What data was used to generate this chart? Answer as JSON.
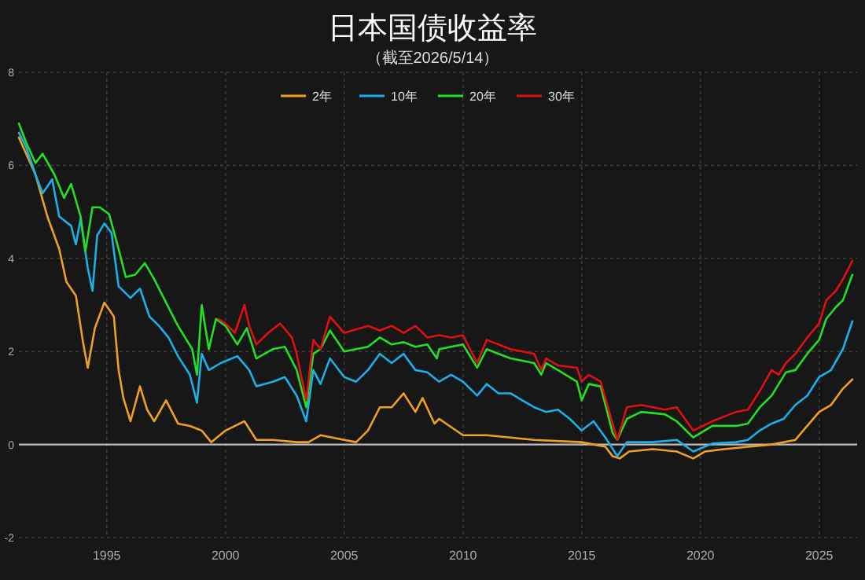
{
  "chart_data": {
    "type": "line",
    "title": "日本国债收益率",
    "subtitle": "（截至2026/5/14）",
    "xlim": [
      1991.3,
      2026.6
    ],
    "ylim": [
      -2,
      8
    ],
    "xticks": [
      1995,
      2000,
      2005,
      2010,
      2015,
      2020,
      2025
    ],
    "yticks": [
      -2,
      0,
      2,
      4,
      6,
      8
    ],
    "grid": true,
    "legend": "top",
    "marker": "none",
    "line_style": "solid",
    "ref_lines": [
      {
        "axis": "y",
        "value": 0,
        "color": "#bbbbbb"
      }
    ],
    "series": [
      {
        "name": "2年",
        "color": "#f0a020",
        "x": [
          1991.3,
          1992.0,
          1992.5,
          1993.0,
          1993.3,
          1993.7,
          1994.0,
          1994.2,
          1994.5,
          1994.9,
          1995.3,
          1995.5,
          1995.7,
          1996.0,
          1996.4,
          1996.7,
          1997.0,
          1997.5,
          1998.0,
          1998.5,
          1999.0,
          1999.4,
          2000.0,
          2000.8,
          2001.3,
          2002.0,
          2003.0,
          2003.5,
          2004.0,
          2005.0,
          2005.5,
          2006.0,
          2006.5,
          2007.0,
          2007.5,
          2008.0,
          2008.3,
          2008.8,
          2009.0,
          2010.0,
          2011.0,
          2013.0,
          2015.0,
          2016.0,
          2016.3,
          2016.6,
          2017.0,
          2018.0,
          2019.0,
          2019.7,
          2020.2,
          2021.0,
          2022.0,
          2023.0,
          2024.0,
          2024.5,
          2025.0,
          2025.5,
          2026.0,
          2026.4
        ],
        "values": [
          6.6,
          5.8,
          4.9,
          4.2,
          3.5,
          3.2,
          2.2,
          1.65,
          2.5,
          3.05,
          2.75,
          1.6,
          1.0,
          0.5,
          1.25,
          0.75,
          0.5,
          0.95,
          0.45,
          0.4,
          0.3,
          0.05,
          0.3,
          0.5,
          0.1,
          0.1,
          0.05,
          0.05,
          0.2,
          0.1,
          0.05,
          0.3,
          0.8,
          0.8,
          1.1,
          0.7,
          1.0,
          0.45,
          0.55,
          0.2,
          0.2,
          0.1,
          0.05,
          -0.05,
          -0.25,
          -0.3,
          -0.15,
          -0.1,
          -0.15,
          -0.3,
          -0.15,
          -0.1,
          -0.05,
          0,
          0.1,
          0.4,
          0.7,
          0.85,
          1.2,
          1.4
        ]
      },
      {
        "name": "10年",
        "color": "#1ab0e8",
        "x": [
          1991.3,
          1991.6,
          1992.0,
          1992.3,
          1992.7,
          1993.0,
          1993.5,
          1993.7,
          1993.9,
          1994.2,
          1994.4,
          1994.6,
          1994.9,
          1995.2,
          1995.5,
          1996.0,
          1996.4,
          1996.8,
          1997.2,
          1997.6,
          1998.0,
          1998.5,
          1998.8,
          1999.0,
          1999.3,
          1999.8,
          2000.5,
          2001.0,
          2001.3,
          2002.0,
          2002.5,
          2003.0,
          2003.4,
          2003.7,
          2004.0,
          2004.4,
          2005.0,
          2005.5,
          2006.0,
          2006.5,
          2007.0,
          2007.5,
          2008.0,
          2008.5,
          2009.0,
          2009.5,
          2010.0,
          2010.6,
          2011.0,
          2011.5,
          2012.0,
          2013.0,
          2013.5,
          2014.0,
          2014.5,
          2015.0,
          2015.5,
          2016.0,
          2016.5,
          2016.9,
          2018.0,
          2019.0,
          2019.7,
          2020.5,
          2021.5,
          2022.0,
          2022.5,
          2023.0,
          2023.5,
          2024.0,
          2024.5,
          2025.0,
          2025.5,
          2026.0,
          2026.4
        ],
        "values": [
          6.7,
          6.4,
          5.8,
          5.4,
          5.7,
          4.9,
          4.7,
          4.3,
          4.85,
          3.8,
          3.3,
          4.5,
          4.75,
          4.55,
          3.4,
          3.15,
          3.35,
          2.75,
          2.55,
          2.3,
          1.9,
          1.5,
          0.9,
          1.95,
          1.6,
          1.75,
          1.9,
          1.6,
          1.25,
          1.35,
          1.45,
          1.05,
          0.5,
          1.6,
          1.3,
          1.85,
          1.45,
          1.35,
          1.6,
          1.95,
          1.75,
          1.95,
          1.6,
          1.55,
          1.35,
          1.5,
          1.35,
          1.05,
          1.3,
          1.1,
          1.1,
          0.8,
          0.7,
          0.75,
          0.55,
          0.3,
          0.5,
          0.15,
          -0.25,
          0.05,
          0.05,
          0.1,
          -0.15,
          0.02,
          0.05,
          0.1,
          0.3,
          0.45,
          0.55,
          0.85,
          1.05,
          1.45,
          1.6,
          2.05,
          2.65
        ]
      },
      {
        "name": "20年",
        "color": "#22e022",
        "x": [
          1991.3,
          1991.6,
          1992.0,
          1992.3,
          1992.8,
          1993.2,
          1993.5,
          1993.9,
          1994.1,
          1994.4,
          1994.7,
          1995.1,
          1995.5,
          1995.8,
          1996.2,
          1996.6,
          1997.0,
          1997.5,
          1998.0,
          1998.6,
          1998.8,
          1999.0,
          1999.3,
          1999.6,
          2000.0,
          2000.5,
          2000.9,
          2001.3,
          2002.0,
          2002.5,
          2003.0,
          2003.4,
          2003.7,
          2004.0,
          2004.4,
          2005.0,
          2006.0,
          2006.5,
          2007.0,
          2007.5,
          2008.0,
          2008.5,
          2008.9,
          2009.0,
          2009.5,
          2010.0,
          2010.6,
          2011.0,
          2012.0,
          2013.0,
          2013.3,
          2013.5,
          2014.0,
          2014.8,
          2015.0,
          2015.3,
          2015.8,
          2016.3,
          2016.5,
          2016.9,
          2017.5,
          2018.5,
          2019.0,
          2019.7,
          2020.5,
          2021.5,
          2022.0,
          2022.5,
          2023.0,
          2023.3,
          2023.6,
          2024.0,
          2024.5,
          2025.0,
          2025.3,
          2025.7,
          2026.0,
          2026.4
        ],
        "values": [
          6.9,
          6.5,
          6.05,
          6.25,
          5.8,
          5.3,
          5.6,
          4.9,
          4.15,
          5.1,
          5.1,
          4.95,
          4.2,
          3.6,
          3.65,
          3.9,
          3.55,
          3.05,
          2.55,
          2.05,
          1.5,
          3.0,
          2.05,
          2.7,
          2.55,
          2.15,
          2.5,
          1.85,
          2.05,
          2.1,
          1.6,
          0.8,
          1.95,
          2.05,
          2.45,
          2.0,
          2.1,
          2.3,
          2.15,
          2.2,
          2.1,
          2.15,
          1.85,
          2.05,
          2.1,
          2.15,
          1.65,
          2.05,
          1.85,
          1.75,
          1.5,
          1.75,
          1.6,
          1.35,
          0.95,
          1.3,
          1.25,
          0.25,
          0.1,
          0.55,
          0.7,
          0.65,
          0.5,
          0.15,
          0.4,
          0.4,
          0.45,
          0.8,
          1.05,
          1.3,
          1.55,
          1.6,
          1.95,
          2.25,
          2.7,
          2.95,
          3.1,
          3.65
        ]
      },
      {
        "name": "30年",
        "color": "#e01010",
        "x": [
          1999.7,
          2000.0,
          2000.4,
          2000.8,
          2001.0,
          2001.3,
          2001.8,
          2002.3,
          2002.8,
          2003.0,
          2003.4,
          2003.7,
          2004.0,
          2004.4,
          2005.0,
          2006.0,
          2006.5,
          2007.0,
          2007.5,
          2008.0,
          2008.5,
          2009.0,
          2009.5,
          2010.0,
          2010.6,
          2011.0,
          2012.0,
          2013.0,
          2013.3,
          2013.5,
          2014.0,
          2014.8,
          2015.0,
          2015.3,
          2015.8,
          2016.3,
          2016.5,
          2016.9,
          2017.5,
          2018.5,
          2019.0,
          2019.7,
          2020.5,
          2021.5,
          2022.0,
          2022.5,
          2023.0,
          2023.3,
          2023.6,
          2024.0,
          2024.5,
          2025.0,
          2025.3,
          2025.7,
          2026.0,
          2026.4
        ],
        "values": [
          2.7,
          2.6,
          2.4,
          3.0,
          2.55,
          2.15,
          2.4,
          2.6,
          2.3,
          1.95,
          0.95,
          2.25,
          2.05,
          2.75,
          2.4,
          2.55,
          2.45,
          2.55,
          2.4,
          2.55,
          2.3,
          2.35,
          2.3,
          2.35,
          1.75,
          2.25,
          2.05,
          1.95,
          1.6,
          1.85,
          1.7,
          1.65,
          1.35,
          1.5,
          1.35,
          0.45,
          0.1,
          0.8,
          0.85,
          0.75,
          0.8,
          0.3,
          0.5,
          0.7,
          0.75,
          1.15,
          1.6,
          1.5,
          1.75,
          1.95,
          2.3,
          2.6,
          3.1,
          3.3,
          3.55,
          3.95
        ]
      }
    ]
  }
}
